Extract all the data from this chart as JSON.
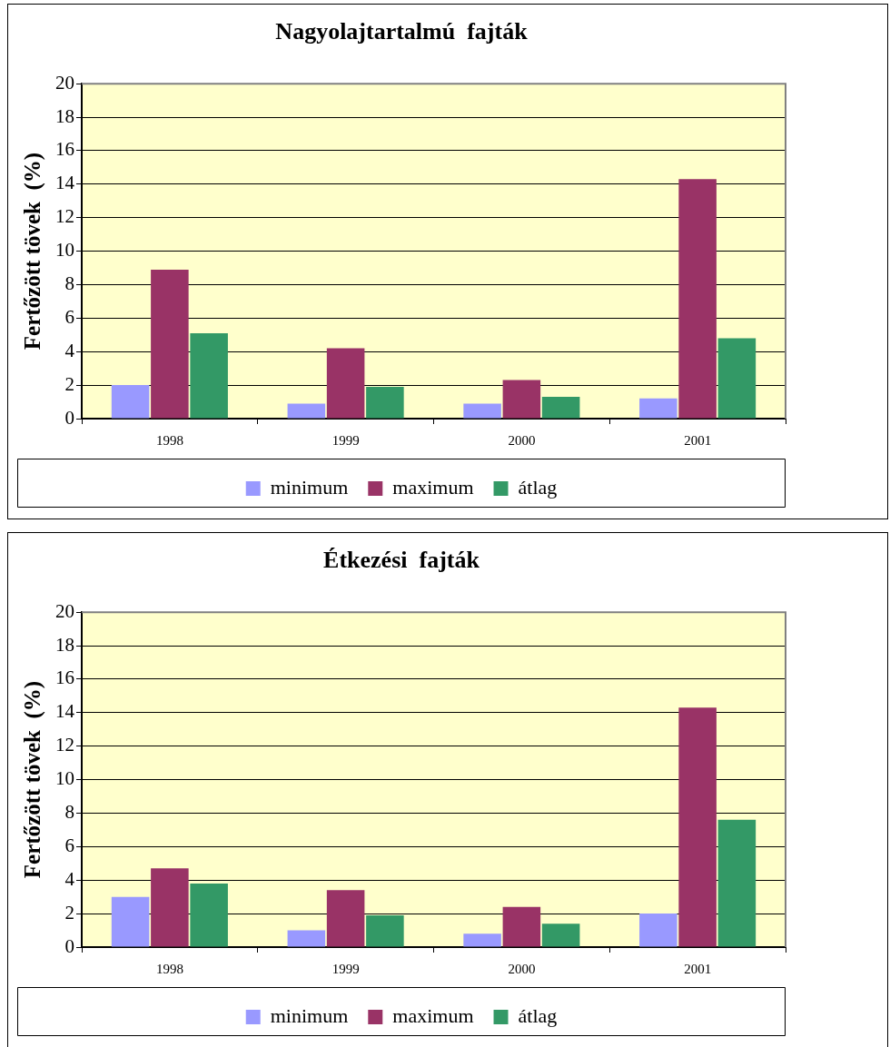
{
  "chart_data": [
    {
      "type": "bar",
      "title": "Nagyolajtartalmú  fajták",
      "ylabel": "Fertőzött tövek  (%)",
      "categories": [
        "1998",
        "1999",
        "2000",
        "2001"
      ],
      "series": [
        {
          "name": "minimum",
          "color": "#9999ff",
          "values": [
            2.0,
            0.9,
            0.9,
            1.2
          ]
        },
        {
          "name": "maximum",
          "color": "#993366",
          "values": [
            8.9,
            4.2,
            2.3,
            14.3
          ]
        },
        {
          "name": "átlag",
          "color": "#339966",
          "values": [
            5.1,
            1.9,
            1.3,
            4.8
          ]
        }
      ],
      "ylim": [
        0,
        20
      ],
      "yticks": [
        0,
        2,
        4,
        6,
        8,
        10,
        12,
        14,
        16,
        18,
        20
      ],
      "grid": "y",
      "legend": "bottom"
    },
    {
      "type": "bar",
      "title": "Étkezési  fajták",
      "ylabel": "Fertőzött tövek  (%)",
      "categories": [
        "1998",
        "1999",
        "2000",
        "2001"
      ],
      "series": [
        {
          "name": "minimum",
          "color": "#9999ff",
          "values": [
            3.0,
            1.0,
            0.8,
            2.0
          ]
        },
        {
          "name": "maximum",
          "color": "#993366",
          "values": [
            4.7,
            3.4,
            2.4,
            14.3
          ]
        },
        {
          "name": "átlag",
          "color": "#339966",
          "values": [
            3.8,
            1.9,
            1.4,
            7.6
          ]
        }
      ],
      "ylim": [
        0,
        20
      ],
      "yticks": [
        0,
        2,
        4,
        6,
        8,
        10,
        12,
        14,
        16,
        18,
        20
      ],
      "grid": "y",
      "legend": "bottom"
    }
  ]
}
